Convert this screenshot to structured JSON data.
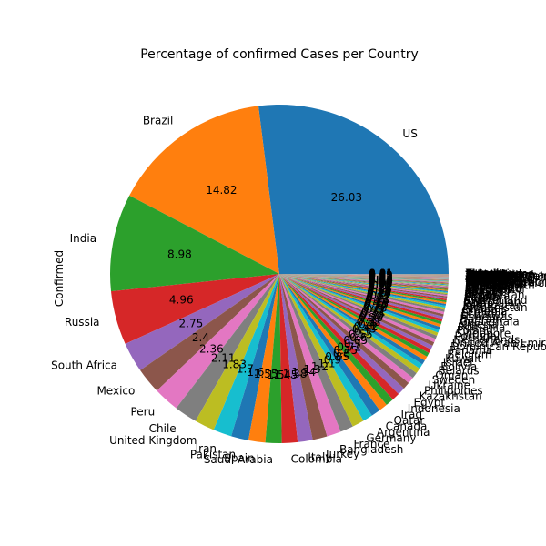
{
  "chart_data": {
    "type": "pie",
    "title": "Percentage of confirmed Cases per Country",
    "ylabel": "Confirmed",
    "autopct_format": "%.2f",
    "colors": [
      "#1f77b4",
      "#ff7f0e",
      "#2ca02c",
      "#d62728",
      "#9467bd",
      "#8c564b",
      "#e377c2",
      "#7f7f7f",
      "#bcbd22",
      "#17becf"
    ],
    "slices": [
      {
        "label": "US",
        "value": 26.03
      },
      {
        "label": "Brazil",
        "value": 14.82
      },
      {
        "label": "India",
        "value": 8.98
      },
      {
        "label": "Russia",
        "value": 4.96
      },
      {
        "label": "South Africa",
        "value": 2.75
      },
      {
        "label": "Mexico",
        "value": 2.4
      },
      {
        "label": "Peru",
        "value": 2.36
      },
      {
        "label": "Chile",
        "value": 2.11
      },
      {
        "label": "United Kingdom",
        "value": 1.83
      },
      {
        "label": "Iran",
        "value": 1.7
      },
      {
        "label": "Pakistan",
        "value": 1.6
      },
      {
        "label": "Spain",
        "value": 1.55
      },
      {
        "label": "Saudi Arabia",
        "value": 1.5
      },
      {
        "label": "Colombia",
        "value": 1.45
      },
      {
        "label": "Italy",
        "value": 1.38
      },
      {
        "label": "Turkey",
        "value": 1.34
      },
      {
        "label": "Bangladesh",
        "value": 1.3
      },
      {
        "label": "France",
        "value": 1.2
      },
      {
        "label": "Germany",
        "value": 1.1
      },
      {
        "label": "Argentina",
        "value": 0.9
      },
      {
        "label": "Canada",
        "value": 0.85
      },
      {
        "label": "Qatar",
        "value": 0.8
      },
      {
        "label": "Iraq",
        "value": 0.75
      },
      {
        "label": "Indonesia",
        "value": 0.72
      },
      {
        "label": "Egypt",
        "value": 0.7
      },
      {
        "label": "Kazakhstan",
        "value": 0.65
      },
      {
        "label": "Philippines",
        "value": 0.6
      },
      {
        "label": "Ukraine",
        "value": 0.55
      },
      {
        "label": "Sweden",
        "value": 0.5
      },
      {
        "label": "Oman",
        "value": 0.45
      },
      {
        "label": "Belarus",
        "value": 0.42
      },
      {
        "label": "Bolivia",
        "value": 0.4
      },
      {
        "label": "Israel",
        "value": 0.38
      },
      {
        "label": "Kuwait",
        "value": 0.37
      },
      {
        "label": "Belgium",
        "value": 0.36
      },
      {
        "label": "Panama",
        "value": 0.35
      },
      {
        "label": "Dominican Republic",
        "value": 0.33
      },
      {
        "label": "United Arab Emirates",
        "value": 0.31
      },
      {
        "label": "Netherlands",
        "value": 0.3
      },
      {
        "label": "Portugal",
        "value": 0.28
      },
      {
        "label": "Singapore",
        "value": 0.27
      },
      {
        "label": "Poland",
        "value": 0.26
      },
      {
        "label": "Romania",
        "value": 0.25
      },
      {
        "label": "Nigeria",
        "value": 0.24
      },
      {
        "label": "Guatemala",
        "value": 0.23
      },
      {
        "label": "Bahrain",
        "value": 0.22
      },
      {
        "label": "Honduras",
        "value": 0.21
      },
      {
        "label": "Ecuador",
        "value": 0.2
      },
      {
        "label": "Armenia",
        "value": 0.19
      },
      {
        "label": "Ghana",
        "value": 0.18
      },
      {
        "label": "Afghanistan",
        "value": 0.17
      },
      {
        "label": "Kyrgyzstan",
        "value": 0.16
      },
      {
        "label": "Japan",
        "value": 0.15
      },
      {
        "label": "Azerbaijan",
        "value": 0.14
      },
      {
        "label": "Switzerland",
        "value": 0.13
      },
      {
        "label": "Algeria",
        "value": 0.12
      },
      {
        "label": "Serbia",
        "value": 0.11
      },
      {
        "label": "Moldova",
        "value": 0.1
      },
      {
        "label": "Uzbekistan",
        "value": 0.1
      },
      {
        "label": "Nepal",
        "value": 0.09
      },
      {
        "label": "Ireland",
        "value": 0.09
      },
      {
        "label": "Kenya",
        "value": 0.08
      },
      {
        "label": "Morocco",
        "value": 0.08
      },
      {
        "label": "Austria",
        "value": 0.07
      },
      {
        "label": "El Salvador",
        "value": 0.07
      },
      {
        "label": "Costa Rica",
        "value": 0.06
      },
      {
        "label": "Australia",
        "value": 0.06
      },
      {
        "label": "Cameroon",
        "value": 0.05
      },
      {
        "label": "Ethiopia",
        "value": 0.05
      },
      {
        "label": "Czechia",
        "value": 0.05
      },
      {
        "label": "Korea, South",
        "value": 0.04
      },
      {
        "label": "Denmark",
        "value": 0.04
      },
      {
        "label": "Venezuela",
        "value": 0.04
      },
      {
        "label": "Sudan",
        "value": 0.04
      },
      {
        "label": "Bosnia and Herzegovina",
        "value": 0.03
      },
      {
        "label": "Bulgaria",
        "value": 0.03
      },
      {
        "label": "Cote d'Ivoire",
        "value": 0.03
      },
      {
        "label": "North Macedonia",
        "value": 0.03
      },
      {
        "label": "Madagascar",
        "value": 0.03
      },
      {
        "label": "Senegal",
        "value": 0.03
      },
      {
        "label": "Norway",
        "value": 0.03
      },
      {
        "label": "Malaysia",
        "value": 0.02
      },
      {
        "label": "Kosovo",
        "value": 0.02
      },
      {
        "label": "Zambia",
        "value": 0.02
      },
      {
        "label": "Finland",
        "value": 0.02
      },
      {
        "label": "Tajikistan",
        "value": 0.02
      },
      {
        "label": "Haiti",
        "value": 0.02
      },
      {
        "label": "Gabon",
        "value": 0.02
      },
      {
        "label": "Luxembourg",
        "value": 0.02
      },
      {
        "label": "Guinea",
        "value": 0.02
      },
      {
        "label": "Mauritania",
        "value": 0.02
      },
      {
        "label": "Albania",
        "value": 0.02
      },
      {
        "label": "Paraguay",
        "value": 0.02
      },
      {
        "label": "Lebanon",
        "value": 0.02
      },
      {
        "label": "Croatia",
        "value": 0.02
      },
      {
        "label": "Zimbabwe",
        "value": 0.02
      },
      {
        "label": "Libya",
        "value": 0.02
      },
      {
        "label": "Greece",
        "value": 0.01
      },
      {
        "label": "Djibouti",
        "value": 0.01
      },
      {
        "label": "Malawi",
        "value": 0.01
      },
      {
        "label": "Hungary",
        "value": 0.01
      },
      {
        "label": "Equatorial Guinea",
        "value": 0.01
      },
      {
        "label": "Central African Republic",
        "value": 0.01
      },
      {
        "label": "Maldives",
        "value": 0.01
      },
      {
        "label": "Nicaragua",
        "value": 0.01
      },
      {
        "label": "Montenegro",
        "value": 0.01
      },
      {
        "label": "Namibia",
        "value": 0.01
      },
      {
        "label": "Thailand",
        "value": 0.01
      },
      {
        "label": "Somalia",
        "value": 0.01
      },
      {
        "label": "Eswatini",
        "value": 0.01
      },
      {
        "label": "Mali",
        "value": 0.01
      },
      {
        "label": "Congo (Kinshasa)",
        "value": 0.01
      },
      {
        "label": "Tunisia",
        "value": 0.01
      },
      {
        "label": "Suriname",
        "value": 0.01
      },
      {
        "label": "Sri Lanka",
        "value": 0.01
      },
      {
        "label": "South Sudan",
        "value": 0.01
      },
      {
        "label": "Mozambique",
        "value": 0.01
      },
      {
        "label": "Cabo Verde",
        "value": 0.01
      },
      {
        "label": "Rwanda",
        "value": 0.01
      },
      {
        "label": "Slovakia",
        "value": 0.01
      },
      {
        "label": "Jamaica",
        "value": 0.01
      },
      {
        "label": "Lithuania",
        "value": 0.01
      },
      {
        "label": "Sierra Leone",
        "value": 0.01
      },
      {
        "label": "Angola",
        "value": 0.01
      },
      {
        "label": "Estonia",
        "value": 0.01
      },
      {
        "label": "Yemen",
        "value": 0.01
      }
    ]
  }
}
